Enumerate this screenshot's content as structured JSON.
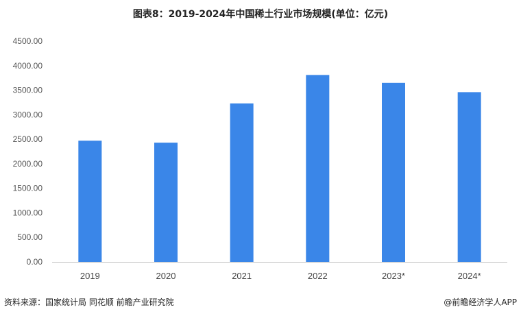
{
  "chart_data": {
    "type": "bar",
    "title": "图表8：2019-2024年中国稀土行业市场规模(单位：亿元)",
    "categories": [
      "2019",
      "2020",
      "2021",
      "2022",
      "2023*",
      "2024*"
    ],
    "values": [
      2470,
      2430,
      3230,
      3810,
      3650,
      3460
    ],
    "ylim": [
      0,
      4500
    ],
    "yticks": [
      "0.00",
      "500.00",
      "1000.00",
      "1500.00",
      "2000.00",
      "2500.00",
      "3000.00",
      "3500.00",
      "4000.00",
      "4500.00"
    ],
    "xlabel": "",
    "ylabel": "",
    "grid": false,
    "legend": "none",
    "bar_color": "#3A86E8",
    "axis_color": "#BFBFBF"
  },
  "footer": {
    "source": "资料来源：国家统计局 同花顺 前瞻产业研究院",
    "credit": "@前瞻经济学人APP"
  }
}
